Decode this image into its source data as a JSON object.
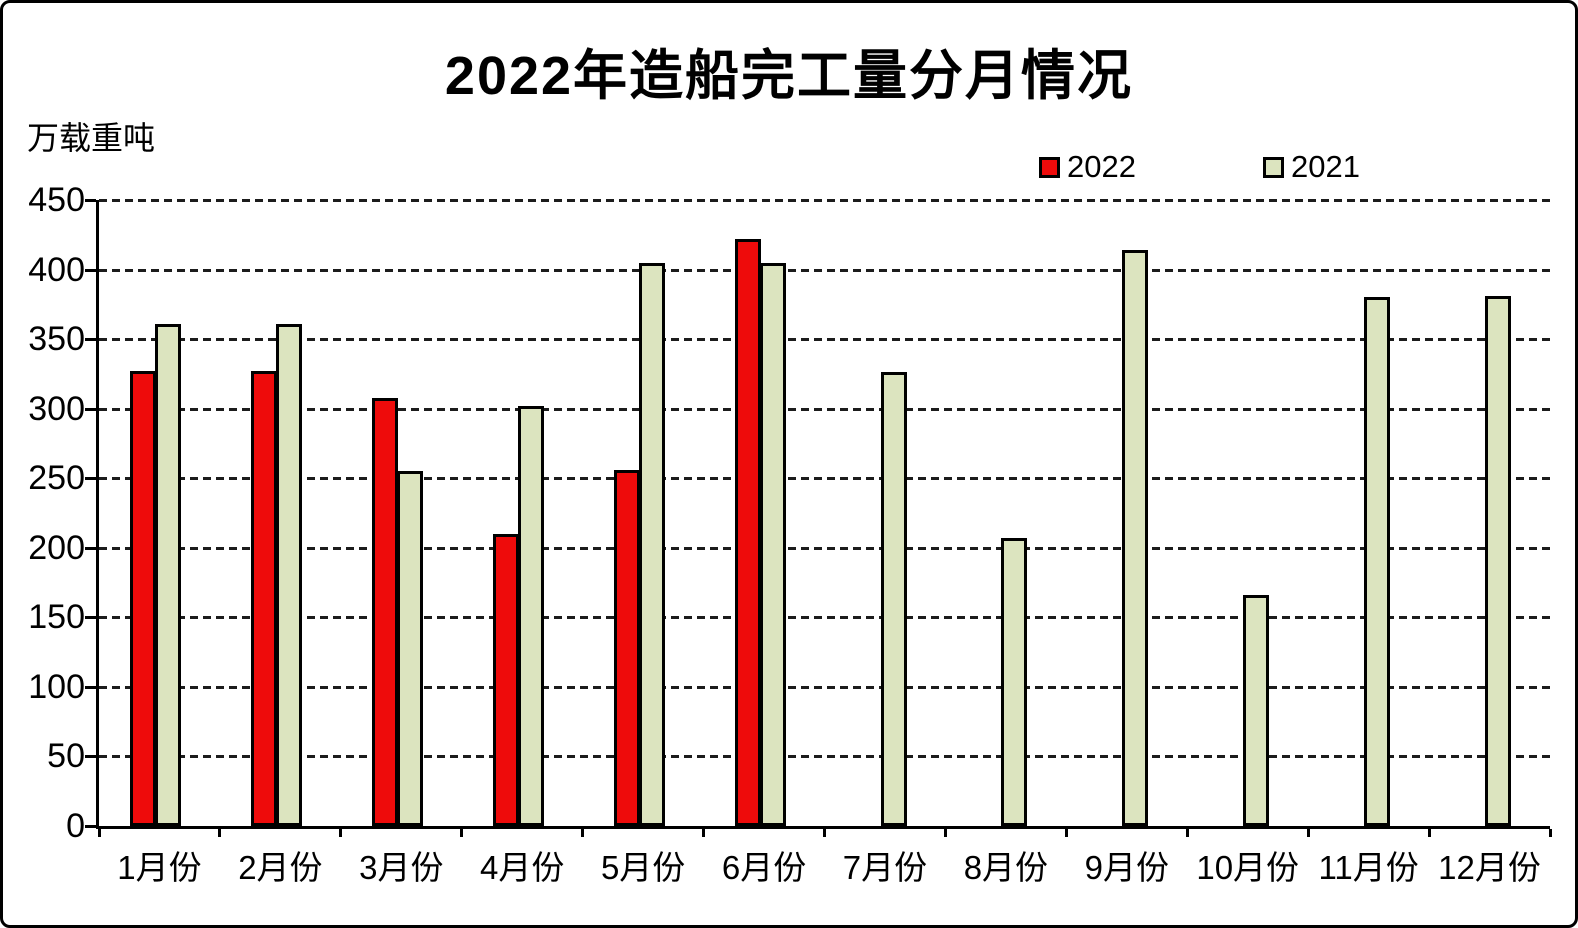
{
  "chart_data": {
    "type": "bar",
    "title": "2022年造船完工量分月情况",
    "xlabel": "",
    "ylabel": "万载重吨",
    "ylim": [
      0,
      450
    ],
    "ytick_step": 50,
    "yticks": [
      0,
      50,
      100,
      150,
      200,
      250,
      300,
      350,
      400,
      450
    ],
    "grid": true,
    "gridline_style": "dashed",
    "legend_position": "top-right",
    "categories": [
      "1月份",
      "2月份",
      "3月份",
      "4月份",
      "5月份",
      "6月份",
      "7月份",
      "8月份",
      "9月份",
      "10月份",
      "11月份",
      "12月份"
    ],
    "series": [
      {
        "name": "2022",
        "color": "#ee0b0b",
        "values": [
          327,
          327,
          308,
          210,
          256,
          422,
          null,
          null,
          null,
          null,
          null,
          null
        ]
      },
      {
        "name": "2021",
        "color": "#dce4bf",
        "values": [
          361,
          361,
          255,
          302,
          405,
          405,
          326,
          207,
          414,
          166,
          380,
          381
        ]
      }
    ]
  },
  "colors": {
    "background": "#ffffff",
    "axis": "#000000",
    "gridline": "#1c1c1c",
    "series_2022": "#ee0b0b",
    "series_2021": "#dce4bf"
  }
}
